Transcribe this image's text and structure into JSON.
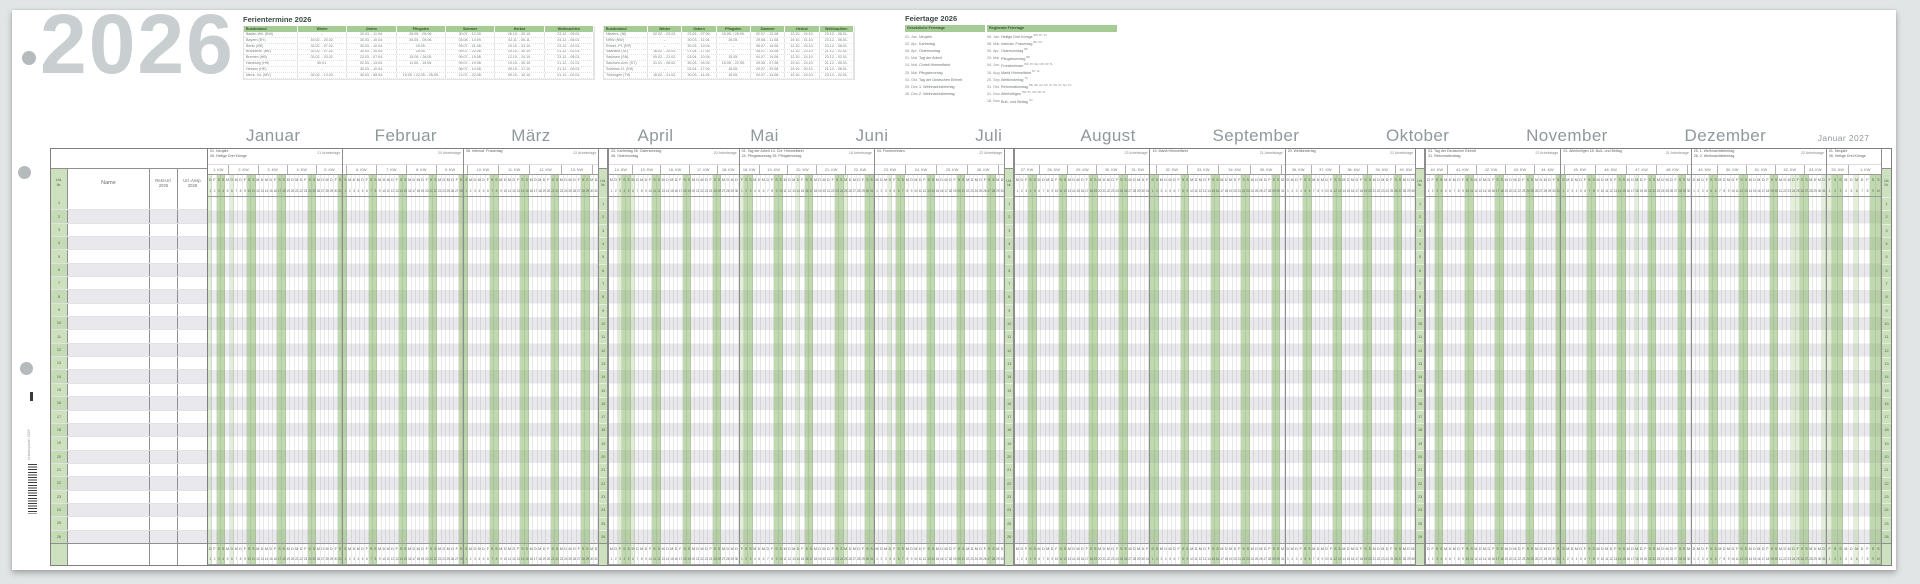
{
  "year": "2026",
  "colors": {
    "accent_green": "#a6cc96",
    "weekend_green": "#b9d7ab",
    "holiday_green": "#dcead3",
    "lfd_column_green": "#cde1bf",
    "year_gray": "#c9ced0",
    "month_label_gray": "#8f999c",
    "row_stripe": "#e9e9ed"
  },
  "ferientermine": {
    "title": "Ferientermine 2026",
    "columns": [
      "Bundesland",
      "Winter",
      "Ostern",
      "Pfingsten",
      "Sommer",
      "Herbst",
      "Weihnachten"
    ],
    "left_rows": [
      [
        "Baden-Wü. (BW)",
        "–",
        "30.03. - 11.04.",
        "26.05. - 05.06.",
        "30.07. - 12.09.",
        "26.10. - 30.10.",
        "23.12. - 09.01."
      ],
      [
        "Bayern (BY)",
        "16.02. - 20.02.",
        "30.03. - 10.04.",
        "26.05. - 05.06.",
        "03.08. - 14.09.",
        "02.11. - 06.11.",
        "24.12. - 08.01."
      ],
      [
        "Berlin (BE)",
        "02.02. - 07.02.",
        "30.03. - 10.04.",
        "15.05.",
        "09.07. - 21.08.",
        "19.10. - 31.10.",
        "23.12. - 02.01."
      ],
      [
        "Brandenb. (BB)",
        "02.02. - 07.02.",
        "30.03. - 10.04.",
        "15.05.",
        "09.07. - 22.08.",
        "19.10. - 30.10.",
        "21.12. - 02.01."
      ],
      [
        "Bremen (HB)",
        "02.02. - 03.02.",
        "23.03. - 07.04.",
        "15.05. / 26.05.",
        "09.07. - 19.08.",
        "12.10. - 24.10.",
        "23.12. - 08.01."
      ],
      [
        "Hamburg (HH)",
        "30.01.",
        "02.03. - 13.03.",
        "11.05. - 15.05.",
        "09.07. - 19.08.",
        "19.10. - 30.10.",
        "21.12. - 01.01."
      ],
      [
        "Hessen (HE)",
        "–",
        "30.03. - 10.04.",
        "–",
        "06.07. - 14.08.",
        "05.10. - 17.10.",
        "21.12. - 09.01."
      ],
      [
        "Meck.-Vo. (MV)",
        "02.02. - 13.02.",
        "30.03. - 08.04.",
        "15.05. / 22.05. - 26.05.",
        "13.07. - 22.08.",
        "05.10. - 10.10.",
        "21.12. - 02.01."
      ]
    ],
    "right_rows": [
      [
        "Nieders. (NI)",
        "02.02. - 03.02.",
        "23.03. - 07.04.",
        "15.05. / 26.05.",
        "02.07. - 12.08.",
        "12.10. - 24.10.",
        "23.12. - 08.01."
      ],
      [
        "NRW (NW)",
        "–",
        "30.03. - 11.04.",
        "26.05.",
        "29.06. - 11.08.",
        "19.10. - 31.10.",
        "23.12. - 06.01."
      ],
      [
        "Rheinl.-Pf. (RP)",
        "–",
        "30.03. - 10.04.",
        "–",
        "06.07. - 14.08.",
        "12.10. - 23.10.",
        "23.12. - 08.01."
      ],
      [
        "Saarland (SL)",
        "16.02. - 20.02.",
        "07.04. - 17.04.",
        "–",
        "06.07. - 14.08.",
        "12.10. - 23.10.",
        "21.12. - 02.01."
      ],
      [
        "Sachsen (SN)",
        "09.02. - 21.02.",
        "03.04. - 10.04.",
        "15.05.",
        "04.07. - 14.08.",
        "12.10. - 24.10.",
        "23.12. - 02.01."
      ],
      [
        "Sachsen-Anh. (ST)",
        "31.01. - 06.02.",
        "30.03. - 04.04.",
        "15.05. - 22.05.",
        "29.06. - 07.08.",
        "19.10. - 24.10.",
        "21.12. - 05.01."
      ],
      [
        "Schlesw.-H. (SH)",
        "–",
        "03.04. - 17.04.",
        "15.05.",
        "20.07. - 29.08.",
        "19.10. - 30.10.",
        "21.12. - 06.01."
      ],
      [
        "Thüringen (TH)",
        "16.02. - 21.02.",
        "30.03. - 11.04.",
        "15.05.",
        "04.07. - 14.08.",
        "12.10. - 24.10.",
        "23.12. - 02.01."
      ]
    ]
  },
  "feiertage": {
    "title": "Feiertage 2026",
    "legal_header": "Gesetzliche Feiertage",
    "regional_header": "Regionale Feiertage",
    "legal": [
      {
        "date": "01. Jan.",
        "name": "Neujahr"
      },
      {
        "date": "03. Apr.",
        "name": "Karfreitag"
      },
      {
        "date": "06. Apr.",
        "name": "Ostermontag"
      },
      {
        "date": "01. Mai",
        "name": "Tag der Arbeit"
      },
      {
        "date": "14. Mai",
        "name": "Christi Himmelfahrt"
      },
      {
        "date": "25. Mai",
        "name": "Pfingstmontag"
      },
      {
        "date": "03. Okt.",
        "name": "Tag der Deutschen Einheit"
      },
      {
        "date": "25. Dez.",
        "name": "1. Weihnachtsfeiertag"
      },
      {
        "date": "26. Dez.",
        "name": "2. Weihnachtsfeiertag"
      }
    ],
    "regional": [
      {
        "date": "06. Jan.",
        "name": "Heilige Drei Könige",
        "states": "BW, BY, ST"
      },
      {
        "date": "08. Mär.",
        "name": "Internat. Frauentag",
        "states": "BE, MV"
      },
      {
        "date": "05. Apr.",
        "name": "Ostersonntag",
        "states": "BB"
      },
      {
        "date": "24. Mai",
        "name": "Pfingstsonntag",
        "states": "BB"
      },
      {
        "date": "04. Jun.",
        "name": "Fronleichnam",
        "states": "BW, BY, HE, NW, RP, SL"
      },
      {
        "date": "15. Aug.",
        "name": "Mariä Himmelfahrt",
        "states": "BY, SL"
      },
      {
        "date": "20. Sep.",
        "name": "Weltkindertag",
        "states": "TH"
      },
      {
        "date": "31. Okt.",
        "name": "Reformationstag",
        "states": "BB, HB, HH, MV, NI, SN, ST, SH, TH"
      },
      {
        "date": "01. Nov.",
        "name": "Allerheiligen",
        "states": "BW, BY, NW, RP, SL"
      },
      {
        "date": "18. Nov.",
        "name": "Buß- und Bettag",
        "states": "SN"
      }
    ]
  },
  "left_columns": {
    "lfd": [
      "Lfd.",
      "Nr."
    ],
    "name": "Name",
    "rest": [
      "Rest-Url.",
      "2025"
    ],
    "ansp": [
      "Url.-Ansp.",
      "2026"
    ]
  },
  "rows": 26,
  "weekday_letters": [
    "M",
    "D",
    "M",
    "D",
    "F",
    "S",
    "S"
  ],
  "months": [
    {
      "label": "Januar",
      "days": 31,
      "first_dow": 3,
      "holidays": [
        1,
        6
      ],
      "notes": [
        "01. Neujahr",
        "06. Heilige Drei Könige"
      ],
      "workdays": "21 Arbeitstage",
      "weeks": [
        [
          "1. KW",
          4
        ],
        [
          "2. KW",
          7
        ],
        [
          "3. KW",
          7
        ],
        [
          "4. KW",
          7
        ],
        [
          "5. KW",
          6
        ]
      ],
      "repeat_after": false
    },
    {
      "label": "Februar",
      "days": 28,
      "first_dow": 6,
      "holidays": [],
      "notes": [],
      "workdays": "20 Arbeitstage",
      "weeks": [
        [
          "5. KW",
          1
        ],
        [
          "6. KW",
          7
        ],
        [
          "7. KW",
          7
        ],
        [
          "8. KW",
          7
        ],
        [
          "9. KW",
          6
        ]
      ],
      "repeat_after": false
    },
    {
      "label": "März",
      "days": 31,
      "first_dow": 6,
      "holidays": [],
      "notes": [
        "08. Internat. Frauentag"
      ],
      "workdays": "22 Arbeitstage",
      "weeks": [
        [
          "9. KW",
          1
        ],
        [
          "10. KW",
          7
        ],
        [
          "11. KW",
          7
        ],
        [
          "12. KW",
          7
        ],
        [
          "13. KW",
          7
        ],
        [
          "14. KW",
          2
        ]
      ],
      "repeat_after": true
    },
    {
      "label": "April",
      "days": 30,
      "first_dow": 2,
      "holidays": [
        3,
        6
      ],
      "notes": [
        "03. Karfreitag 05. Ostersonntag",
        "06. Ostermontag"
      ],
      "workdays": "20 Arbeitstage",
      "weeks": [
        [
          "14. KW",
          5
        ],
        [
          "15. KW",
          7
        ],
        [
          "16. KW",
          7
        ],
        [
          "17. KW",
          7
        ],
        [
          "18. KW",
          4
        ]
      ],
      "repeat_after": false
    },
    {
      "label": "Mai",
      "days": 31,
      "first_dow": 4,
      "holidays": [
        1,
        14,
        25
      ],
      "notes": [
        "01. Tag der Arbeit 14. Chr. Himmelfahrt",
        "24. Pfingstsonntag 25. Pfingstmontag"
      ],
      "workdays": "18 Arbeitstage",
      "weeks": [
        [
          "18. KW",
          3
        ],
        [
          "19. KW",
          7
        ],
        [
          "20. KW",
          7
        ],
        [
          "21. KW",
          7
        ],
        [
          "22. KW",
          7
        ]
      ],
      "repeat_after": false
    },
    {
      "label": "Juni",
      "days": 30,
      "first_dow": 0,
      "holidays": [
        4
      ],
      "notes": [
        "04. Fronleichnam"
      ],
      "workdays": "22 Arbeitstage",
      "weeks": [
        [
          "23. KW",
          7
        ],
        [
          "24. KW",
          7
        ],
        [
          "25. KW",
          7
        ],
        [
          "26. KW",
          7
        ],
        [
          "27. KW",
          2
        ]
      ],
      "repeat_after": true
    },
    {
      "label": "Juli",
      "days": 31,
      "first_dow": 2,
      "holidays": [],
      "notes": [],
      "workdays": "23 Arbeitstage",
      "weeks": [
        [
          "27. KW",
          5
        ],
        [
          "28. KW",
          7
        ],
        [
          "29. KW",
          7
        ],
        [
          "30. KW",
          7
        ],
        [
          "31. KW",
          5
        ]
      ],
      "repeat_after": false
    },
    {
      "label": "August",
      "days": 31,
      "first_dow": 5,
      "holidays": [],
      "notes": [
        "15. Mariä Himmelfahrt"
      ],
      "workdays": "21 Arbeitstage",
      "weeks": [
        [
          "31. KW",
          2
        ],
        [
          "32. KW",
          7
        ],
        [
          "33. KW",
          7
        ],
        [
          "34. KW",
          7
        ],
        [
          "35. KW",
          7
        ],
        [
          "36. KW",
          1
        ]
      ],
      "repeat_after": false
    },
    {
      "label": "September",
      "days": 30,
      "first_dow": 1,
      "holidays": [],
      "notes": [
        "20. Weltkindertag"
      ],
      "workdays": "22 Arbeitstage",
      "weeks": [
        [
          "36. KW",
          6
        ],
        [
          "37. KW",
          7
        ],
        [
          "38. KW",
          7
        ],
        [
          "39. KW",
          7
        ],
        [
          "40. KW",
          3
        ]
      ],
      "repeat_after": true
    },
    {
      "label": "Oktober",
      "days": 31,
      "first_dow": 3,
      "holidays": [],
      "notes": [
        "03. Tag der Deutschen Einheit",
        "31. Reformationstag"
      ],
      "workdays": "22 Arbeitstage",
      "weeks": [
        [
          "40. KW",
          4
        ],
        [
          "41. KW",
          7
        ],
        [
          "42. KW",
          7
        ],
        [
          "43. KW",
          7
        ],
        [
          "44. KW",
          6
        ]
      ],
      "repeat_after": false
    },
    {
      "label": "November",
      "days": 30,
      "first_dow": 6,
      "holidays": [
        18
      ],
      "notes": [
        "01. Allerheiligen 18. Buß- und Bettag"
      ],
      "workdays": "21 Arbeitstage",
      "weeks": [
        [
          "44. KW",
          1
        ],
        [
          "45. KW",
          7
        ],
        [
          "46. KW",
          7
        ],
        [
          "47. KW",
          7
        ],
        [
          "48. KW",
          7
        ],
        [
          "49. KW",
          1
        ]
      ],
      "repeat_after": false
    },
    {
      "label": "Dezember",
      "days": 31,
      "first_dow": 1,
      "holidays": [
        24,
        25,
        31
      ],
      "notes": [
        "25. 1. Weihnachtsfeiertag",
        "26. 2. Weihnachtsfeiertag"
      ],
      "workdays": "22 Arbeitstage",
      "weeks": [
        [
          "49. KW",
          6
        ],
        [
          "50. KW",
          7
        ],
        [
          "51. KW",
          7
        ],
        [
          "52. KW",
          7
        ],
        [
          "53. KW",
          4
        ]
      ],
      "repeat_after": false
    },
    {
      "label": "Januar 2027",
      "days": 10,
      "first_dow": 4,
      "holidays": [
        1,
        6
      ],
      "notes": [
        "01. Neujahr",
        "06. Heilige Drei Könige"
      ],
      "workdays": "",
      "weeks": [
        [
          "53. KW",
          3
        ],
        [
          "1. KW",
          7
        ]
      ],
      "repeat_after": true,
      "small": true
    }
  ],
  "side": {
    "product_text": "Urlaubsplaner 2026"
  }
}
